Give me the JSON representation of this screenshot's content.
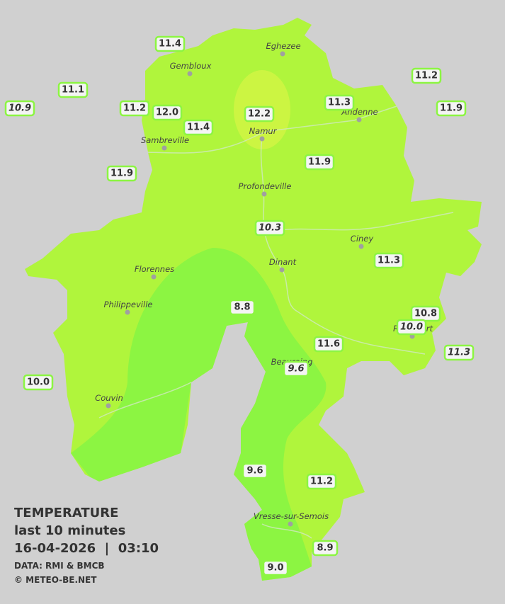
{
  "legend": {
    "title": "TEMPERATURE",
    "subtitle": "last 10 minutes",
    "datetime": "16-04-2026  |  03:10",
    "source": "DATA: RMI & BMCB",
    "copyright": "© METEO-BE.NET"
  },
  "cities": [
    "Eghezee",
    "Gembloux",
    "Andenne",
    "Namur",
    "Sambreville",
    "Profondeville",
    "Ciney",
    "Dinant",
    "Florennes",
    "Philippeville",
    "Rochefort",
    "Beauraing",
    "Couvin",
    "Vresse-sur-Semois"
  ],
  "stations": [
    {
      "label": "11.4",
      "italic": false
    },
    {
      "label": "11.1",
      "italic": false
    },
    {
      "label": "10.9",
      "italic": true
    },
    {
      "label": "11.2",
      "italic": false
    },
    {
      "label": "12.0",
      "italic": false
    },
    {
      "label": "12.2",
      "italic": false
    },
    {
      "label": "11.3",
      "italic": false
    },
    {
      "label": "11.2",
      "italic": false
    },
    {
      "label": "11.9",
      "italic": false
    },
    {
      "label": "11.4",
      "italic": false
    },
    {
      "label": "11.9",
      "italic": false
    },
    {
      "label": "11.9",
      "italic": false
    },
    {
      "label": "10.3",
      "italic": true
    },
    {
      "label": "11.3",
      "italic": false
    },
    {
      "label": "8.8",
      "italic": false
    },
    {
      "label": "10.8",
      "italic": false
    },
    {
      "label": "10.0",
      "italic": true
    },
    {
      "label": "11.6",
      "italic": false
    },
    {
      "label": "11.3",
      "italic": true
    },
    {
      "label": "9.6",
      "italic": true
    },
    {
      "label": "10.0",
      "italic": false
    },
    {
      "label": "9.6",
      "italic": false
    },
    {
      "label": "11.2",
      "italic": false
    },
    {
      "label": "8.9",
      "italic": false
    },
    {
      "label": "9.0",
      "italic": false
    }
  ]
}
